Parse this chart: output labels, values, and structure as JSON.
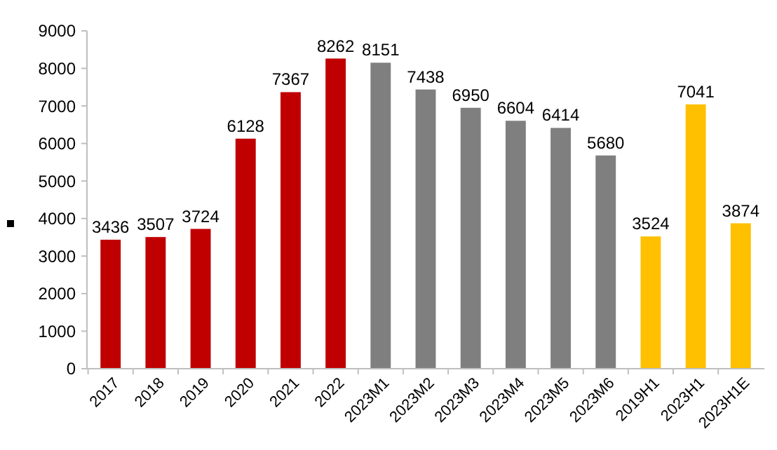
{
  "chart_data": {
    "type": "bar",
    "categories": [
      "2017",
      "2018",
      "2019",
      "2020",
      "2021",
      "2022",
      "2023M1",
      "2023M2",
      "2023M3",
      "2023M4",
      "2023M5",
      "2023M6",
      "2019H1",
      "2023H1",
      "2023H1E"
    ],
    "values": [
      3436,
      3507,
      3724,
      6128,
      7367,
      8262,
      8151,
      7438,
      6950,
      6604,
      6414,
      5680,
      3524,
      7041,
      3874
    ],
    "colors": [
      "#c00000",
      "#c00000",
      "#c00000",
      "#c00000",
      "#c00000",
      "#c00000",
      "#7f7f7f",
      "#7f7f7f",
      "#7f7f7f",
      "#7f7f7f",
      "#7f7f7f",
      "#7f7f7f",
      "#ffc000",
      "#ffc000",
      "#ffc000"
    ],
    "ylim": [
      0,
      9000
    ],
    "yticks": [
      0,
      1000,
      2000,
      3000,
      4000,
      5000,
      6000,
      7000,
      8000,
      9000
    ],
    "data_labels": true
  }
}
